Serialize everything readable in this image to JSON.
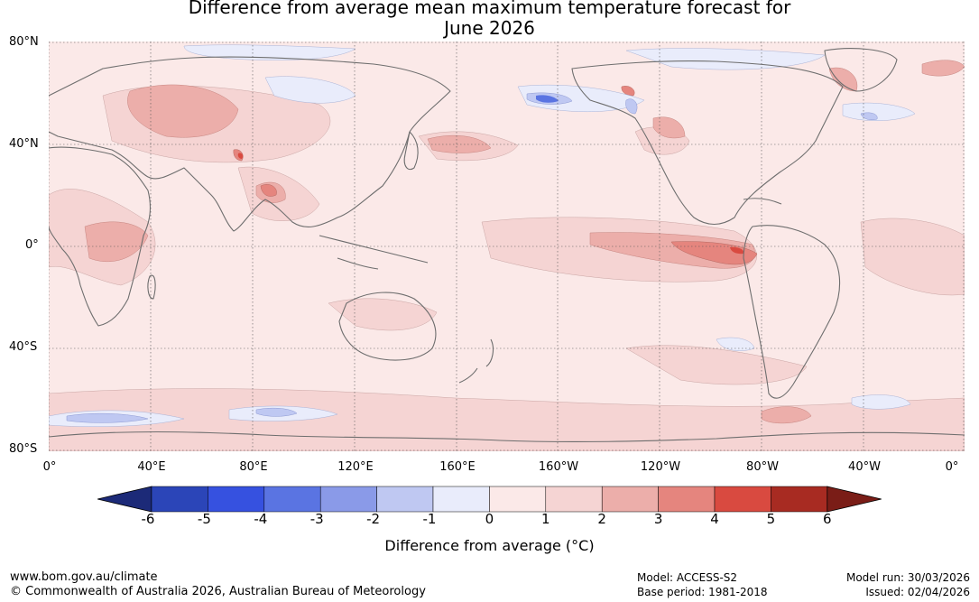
{
  "title_line1": "Difference from average mean maximum temperature forecast for",
  "title_line2": "June 2026",
  "lat_labels": [
    "80°N",
    "40°N",
    "0°",
    "40°S",
    "80°S"
  ],
  "lon_labels": [
    "0°",
    "40°E",
    "80°E",
    "120°E",
    "160°E",
    "160°W",
    "120°W",
    "80°W",
    "40°W",
    "0°"
  ],
  "colorbar": {
    "ticks": [
      "-6",
      "-5",
      "-4",
      "-3",
      "-2",
      "-1",
      "0",
      "1",
      "2",
      "3",
      "4",
      "5",
      "6"
    ],
    "colors": [
      "#1c2a78",
      "#2b45b8",
      "#3651e0",
      "#5a74e2",
      "#8a9ae8",
      "#bfc8f2",
      "#e9ecfb",
      "#fbe9e8",
      "#f5d4d3",
      "#ecaeaa",
      "#e5857e",
      "#d94a40",
      "#a82b22",
      "#7a1d17"
    ],
    "label": "Difference from average (°C)"
  },
  "footer": {
    "url": "www.bom.gov.au/climate",
    "copyright": "© Commonwealth of Australia 2026, Australian Bureau of Meteorology",
    "model": "Model: ACCESS-S2",
    "base_period": "Base period: 1981-2018",
    "model_run": "Model run: 30/03/2026",
    "issued": "Issued: 02/04/2026"
  }
}
